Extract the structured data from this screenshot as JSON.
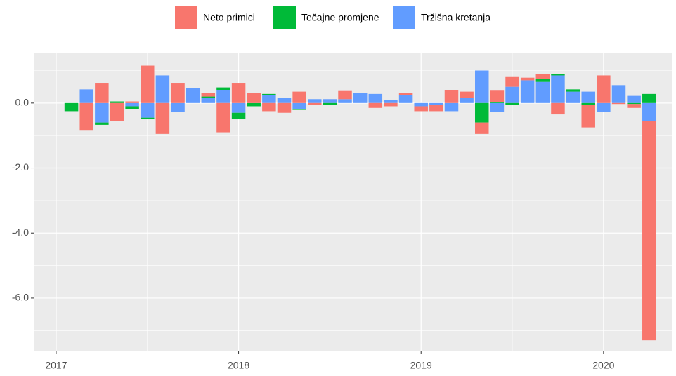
{
  "chart_data": {
    "type": "bar",
    "stacked": true,
    "x": [
      2017.0833,
      2017.1667,
      2017.25,
      2017.3333,
      2017.4167,
      2017.5,
      2017.5833,
      2017.6667,
      2017.75,
      2017.8333,
      2017.9167,
      2018.0,
      2018.0833,
      2018.1667,
      2018.25,
      2018.3333,
      2018.4167,
      2018.5,
      2018.5833,
      2018.6667,
      2018.75,
      2018.8333,
      2018.9167,
      2019.0,
      2019.0833,
      2019.1667,
      2019.25,
      2019.3333,
      2019.4167,
      2019.5,
      2019.5833,
      2019.6667,
      2019.75,
      2019.8333,
      2019.9167,
      2020.0,
      2020.0833,
      2020.1667,
      2020.25
    ],
    "series": [
      {
        "name": "Neto primici",
        "color": "#f8766d",
        "values": [
          0,
          -0.85,
          0.6,
          -0.55,
          0.05,
          1.15,
          -0.95,
          0.6,
          0,
          0.1,
          -0.9,
          0.6,
          0.3,
          -0.25,
          -0.3,
          0.35,
          -0.05,
          0,
          0.25,
          0,
          -0.15,
          -0.1,
          0.05,
          -0.15,
          -0.2,
          0.4,
          0.2,
          -0.35,
          0.35,
          0.3,
          0.08,
          0.17,
          -0.35,
          0,
          -0.7,
          0.85,
          -0.03,
          -0.12,
          -6.75
        ]
      },
      {
        "name": "Tečajne promjene",
        "color": "#00ba38",
        "values": [
          -0.25,
          0,
          -0.07,
          0.05,
          -0.08,
          -0.05,
          0,
          0,
          0,
          0.05,
          0.08,
          -0.2,
          -0.1,
          0.03,
          0,
          -0.03,
          0,
          -0.05,
          0,
          0.02,
          0,
          0,
          0,
          0,
          0,
          0,
          0,
          -0.6,
          0.03,
          -0.05,
          0,
          0.08,
          0.05,
          0.07,
          -0.05,
          0,
          0,
          -0.03,
          0.28
        ]
      },
      {
        "name": "Tržišna kretanja",
        "color": "#619cff",
        "values": [
          0,
          0.42,
          -0.6,
          0,
          -0.1,
          -0.45,
          0.85,
          -0.28,
          0.45,
          0.15,
          0.4,
          -0.3,
          0,
          0.25,
          0.15,
          -0.18,
          0.12,
          0.12,
          0.12,
          0.3,
          0.28,
          0.1,
          0.25,
          -0.1,
          -0.05,
          -0.25,
          0.15,
          1.0,
          -0.28,
          0.5,
          0.7,
          0.65,
          0.85,
          0.35,
          0.35,
          -0.28,
          0.55,
          0.22,
          -0.55
        ]
      }
    ],
    "xlim": [
      2016.877,
      2020.378
    ],
    "xticks": [
      2017,
      2018,
      2019,
      2020
    ],
    "ylim": [
      -7.62,
      1.55
    ],
    "yticks": [
      {
        "value": 0,
        "label": "0.0"
      },
      {
        "value": -2,
        "label": "-2.0"
      },
      {
        "value": -4,
        "label": "-4.0"
      },
      {
        "value": -6,
        "label": "-6.0"
      }
    ],
    "grid": true,
    "legend_position": "top"
  }
}
